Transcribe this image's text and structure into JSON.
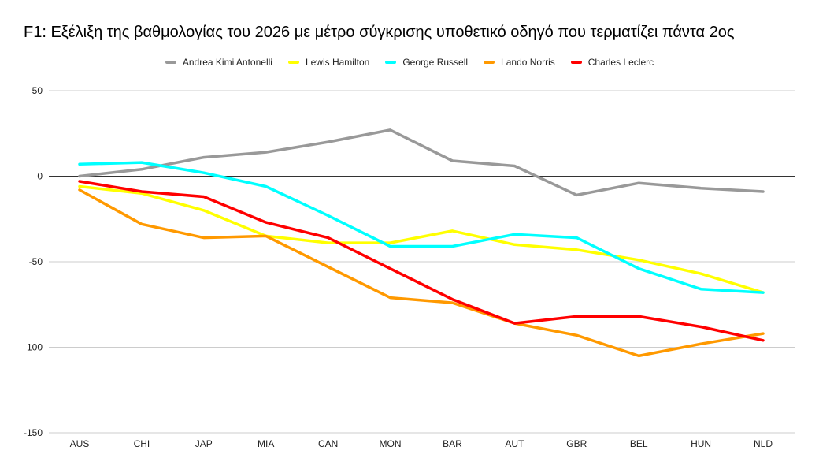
{
  "chart_data": {
    "type": "line",
    "title": "F1: Εξέλιξη της βαθμολογίας του 2026 με μέτρο σύγκρισης υποθετικό οδηγό που τερματίζει πάντα 2ος",
    "xlabel": "",
    "ylabel": "",
    "categories": [
      "AUS",
      "CHI",
      "JAP",
      "MIA",
      "CAN",
      "MON",
      "BAR",
      "AUT",
      "GBR",
      "BEL",
      "HUN",
      "NLD"
    ],
    "ylim": [
      -150,
      50
    ],
    "yticks": [
      50,
      0,
      -50,
      -100,
      -150
    ],
    "grid": true,
    "legend_position": "top-center",
    "series": [
      {
        "name": "Andrea Kimi Antonelli",
        "color": "#999999",
        "values": [
          0,
          4,
          11,
          14,
          20,
          27,
          9,
          6,
          -11,
          -4,
          -7,
          -9
        ]
      },
      {
        "name": "Lewis Hamilton",
        "color": "#ffff00",
        "values": [
          -6,
          -10,
          -20,
          -35,
          -39,
          -39,
          -32,
          -40,
          -43,
          -49,
          -57,
          -68
        ]
      },
      {
        "name": "George Russell",
        "color": "#00ffff",
        "values": [
          7,
          8,
          2,
          -6,
          -23,
          -41,
          -41,
          -34,
          -36,
          -54,
          -66,
          -68
        ]
      },
      {
        "name": "Lando Norris",
        "color": "#ff9900",
        "values": [
          -8,
          -28,
          -36,
          -35,
          -53,
          -71,
          -74,
          -86,
          -93,
          -105,
          -98,
          -92
        ]
      },
      {
        "name": "Charles Leclerc",
        "color": "#ff0000",
        "values": [
          -3,
          -9,
          -12,
          -27,
          -36,
          -54,
          -72,
          -86,
          -82,
          -82,
          -88,
          -96
        ]
      }
    ]
  }
}
